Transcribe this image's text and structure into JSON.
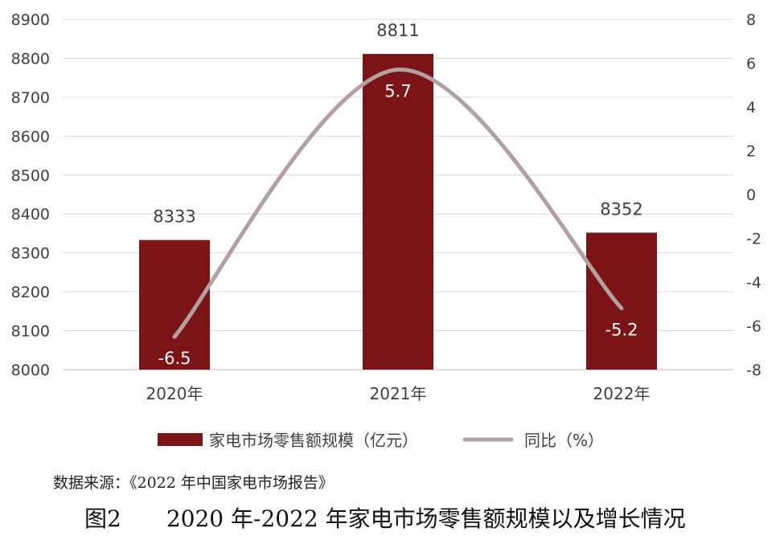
{
  "chart_data": {
    "type": "bar+line",
    "categories": [
      "2020年",
      "2021年",
      "2022年"
    ],
    "series": [
      {
        "name": "家电市场零售额规模（亿元）",
        "type": "bar",
        "axis": "left",
        "values": [
          8333,
          8811,
          8352
        ],
        "color": "#7b1416"
      },
      {
        "name": "同比（%）",
        "type": "line",
        "axis": "right",
        "values": [
          -6.5,
          5.7,
          -5.2
        ],
        "color": "#b3a1a1"
      }
    ],
    "y_left": {
      "min": 8000,
      "max": 8900,
      "ticks": [
        "8000",
        "8100",
        "8200",
        "8300",
        "8400",
        "8500",
        "8600",
        "8700",
        "8800",
        "8900"
      ]
    },
    "y_right": {
      "min": -8,
      "max": 8,
      "ticks": [
        "-8",
        "-6",
        "-4",
        "-2",
        "0",
        "2",
        "4",
        "6",
        "8"
      ]
    },
    "grid": true,
    "legend_position": "bottom"
  },
  "source": "数据来源：《2022 年中国家电市场报告》",
  "caption": {
    "number": "图2",
    "text": "2020 年-2022 年家电市场零售额规模以及增长情况"
  }
}
